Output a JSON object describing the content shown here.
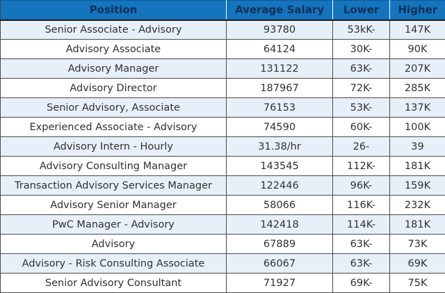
{
  "colors": {
    "header_bg": "#1474BE",
    "header_text": "#0E3055",
    "row_alt_bg": "#E7F0F8",
    "row_bg": "#FFFFFF",
    "border": "#4A4A4A",
    "body_text": "#303030"
  },
  "chart_data": {
    "type": "table",
    "title": "",
    "columns": [
      "Position",
      "Average Salary",
      "Lower",
      "Higher"
    ],
    "fields": [
      "position",
      "average_salary",
      "lower",
      "higher"
    ],
    "cell_names": [
      "position-cell",
      "average-salary-cell",
      "lower-cell",
      "higher-cell"
    ],
    "rows": [
      {
        "position": "Senior Associate - Advisory",
        "average_salary": "93780",
        "lower": "53kK-",
        "higher": "147K"
      },
      {
        "position": "Advisory Associate",
        "average_salary": "64124",
        "lower": "30K-",
        "higher": "90K"
      },
      {
        "position": "Advisory Manager",
        "average_salary": "131122",
        "lower": "63K-",
        "higher": "207K"
      },
      {
        "position": "Advisory Director",
        "average_salary": "187967",
        "lower": "72K-",
        "higher": "285K"
      },
      {
        "position": "Senior Advisory, Associate",
        "average_salary": "76153",
        "lower": "53K-",
        "higher": "137K"
      },
      {
        "position": "Experienced Associate - Advisory",
        "average_salary": "74590",
        "lower": "60K-",
        "higher": "100K"
      },
      {
        "position": "Advisory Intern - Hourly",
        "average_salary": "31.38/hr",
        "lower": "26-",
        "higher": "39"
      },
      {
        "position": "Advisory Consulting Manager",
        "average_salary": "143545",
        "lower": "112K-",
        "higher": "181K"
      },
      {
        "position": "Transaction Advisory Services Manager",
        "average_salary": "122446",
        "lower": "96K-",
        "higher": "159K"
      },
      {
        "position": "Advisory Senior Manager",
        "average_salary": "58066",
        "lower": "116K-",
        "higher": "232K"
      },
      {
        "position": "PwC Manager - Advisory",
        "average_salary": "142418",
        "lower": "114K-",
        "higher": "181K"
      },
      {
        "position": "Advisory",
        "average_salary": "67889",
        "lower": "63K-",
        "higher": "73K"
      },
      {
        "position": "Advisory - Risk Consulting Associate",
        "average_salary": "66067",
        "lower": "63K-",
        "higher": "69K"
      },
      {
        "position": "Senior Advisory Consultant",
        "average_salary": "71927",
        "lower": "69K-",
        "higher": "75K"
      }
    ]
  }
}
